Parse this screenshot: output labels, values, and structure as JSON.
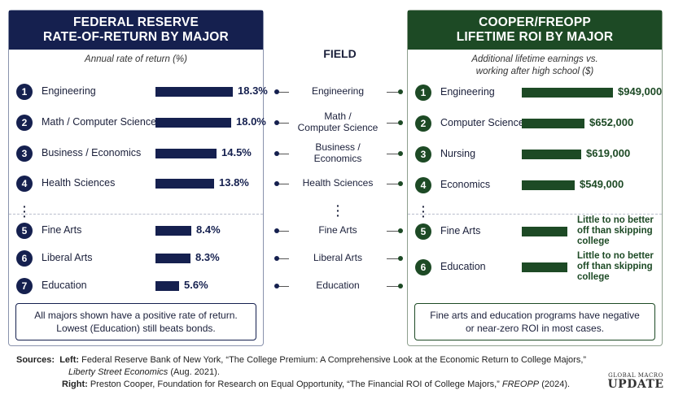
{
  "left_panel": {
    "title_line1": "FEDERAL RESERVE",
    "title_line2": "RATE-OF-RETURN BY MAJOR",
    "subtitle": "Annual rate of return (%)",
    "summary_line1": "All majors shown have a positive rate of return.",
    "summary_line2": "Lowest (Education) still beats bonds."
  },
  "right_panel": {
    "title_line1": "COOPER/FREOPP",
    "title_line2": "LIFETIME ROI BY MAJOR",
    "subtitle_line1": "Additional lifetime earnings vs.",
    "subtitle_line2": "working after high school ($)",
    "summary_line1": "Fine arts and education programs have negative",
    "summary_line2": "or near-zero ROI in most cases."
  },
  "field": {
    "header": "FIELD",
    "labels": [
      [
        "Engineering"
      ],
      [
        "Math /",
        "Computer Science"
      ],
      [
        "Business /",
        "Economics"
      ],
      [
        "Health Sciences"
      ],
      [
        "Fine Arts"
      ],
      [
        "Liberal Arts"
      ],
      [
        "Education"
      ]
    ]
  },
  "chart_data": [
    {
      "type": "bar",
      "title": "FEDERAL RESERVE RATE-OF-RETURN BY MAJOR",
      "xlabel": "",
      "ylabel": "Annual rate of return (%)",
      "categories": [
        "Engineering",
        "Math / Computer Science",
        "Business / Economics",
        "Health Sciences",
        "Fine Arts",
        "Liberal Arts",
        "Education"
      ],
      "ranks": [
        "1",
        "2",
        "3",
        "4",
        "5",
        "6",
        "7"
      ],
      "values": [
        18.3,
        18.0,
        14.5,
        13.8,
        8.4,
        8.3,
        5.6
      ],
      "value_labels": [
        "18.3%",
        "18.0%",
        "14.5%",
        "13.8%",
        "8.4%",
        "8.3%",
        "5.6%"
      ],
      "ylim": [
        0,
        20
      ]
    },
    {
      "type": "bar",
      "title": "COOPER/FREOPP LIFETIME ROI BY MAJOR",
      "xlabel": "",
      "ylabel": "Additional lifetime earnings vs. working after high school ($)",
      "categories": [
        "Engineering",
        "Computer Science",
        "Nursing",
        "Economics",
        "Fine Arts",
        "Education"
      ],
      "ranks": [
        "1",
        "2",
        "3",
        "4",
        "5",
        "6"
      ],
      "values": [
        949000,
        652000,
        619000,
        549000,
        null,
        null
      ],
      "value_labels": [
        "$949,000",
        "$652,000",
        "$619,000",
        "$549,000",
        "",
        ""
      ],
      "notes": [
        "",
        "",
        "",
        "",
        "Little to no better off than skipping college",
        "Little to no better off than skipping college"
      ],
      "ylim": [
        0,
        1000000
      ]
    }
  ],
  "sources": {
    "label": "Sources:",
    "left_label": "Left:",
    "left_text": "Federal Reserve Bank of New York, “The College Premium:  A Comprehensive Look at the Economic Return to College Majors,”",
    "left_pub": "Liberty Street Economics",
    "left_date": "(Aug. 2021).",
    "right_label": "Right:",
    "right_text": "Preston Cooper, Foundation for Research on Equal Opportunity, “The Financial ROI of College Majors,”",
    "right_pub": "FREOPP",
    "right_date": "(2024)."
  },
  "logo": {
    "line1": "GLOBAL MACRO",
    "line2": "UPDATE"
  }
}
